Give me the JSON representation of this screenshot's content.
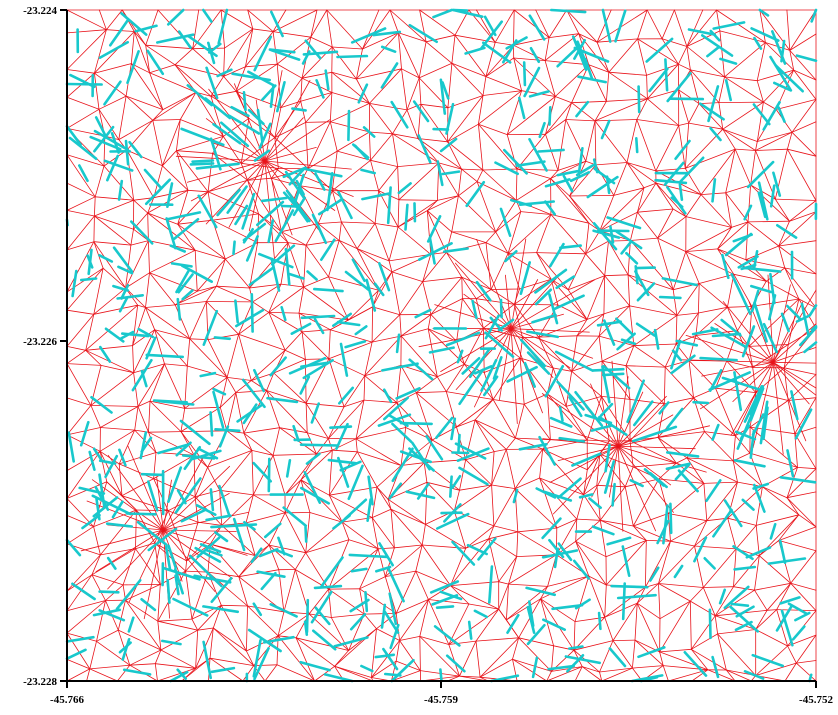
{
  "map": {
    "x_ticks": [
      {
        "value": -45.766,
        "label": "-45.766"
      },
      {
        "value": -45.759,
        "label": "-45.759"
      },
      {
        "value": -45.752,
        "label": "-45.752"
      }
    ],
    "y_ticks": [
      {
        "value": -23.224,
        "label": "-23.224"
      },
      {
        "value": -23.226,
        "label": "-23.226"
      },
      {
        "value": -23.228,
        "label": "-23.228"
      }
    ],
    "x_range": [
      -45.766,
      -45.752
    ],
    "y_range": [
      -23.228,
      -23.224
    ],
    "layers": [
      {
        "name": "triangulation-mesh",
        "color": "#e8141b"
      },
      {
        "name": "flow-segments",
        "color": "#18c8cc"
      }
    ],
    "hubs": [
      {
        "lon": -45.7557,
        "lat": -23.2266
      },
      {
        "lon": -45.7528,
        "lat": -23.2261
      },
      {
        "lon": -45.7623,
        "lat": -23.2249
      },
      {
        "lon": -45.7642,
        "lat": -23.2271
      },
      {
        "lon": -45.7577,
        "lat": -23.2259
      }
    ]
  }
}
